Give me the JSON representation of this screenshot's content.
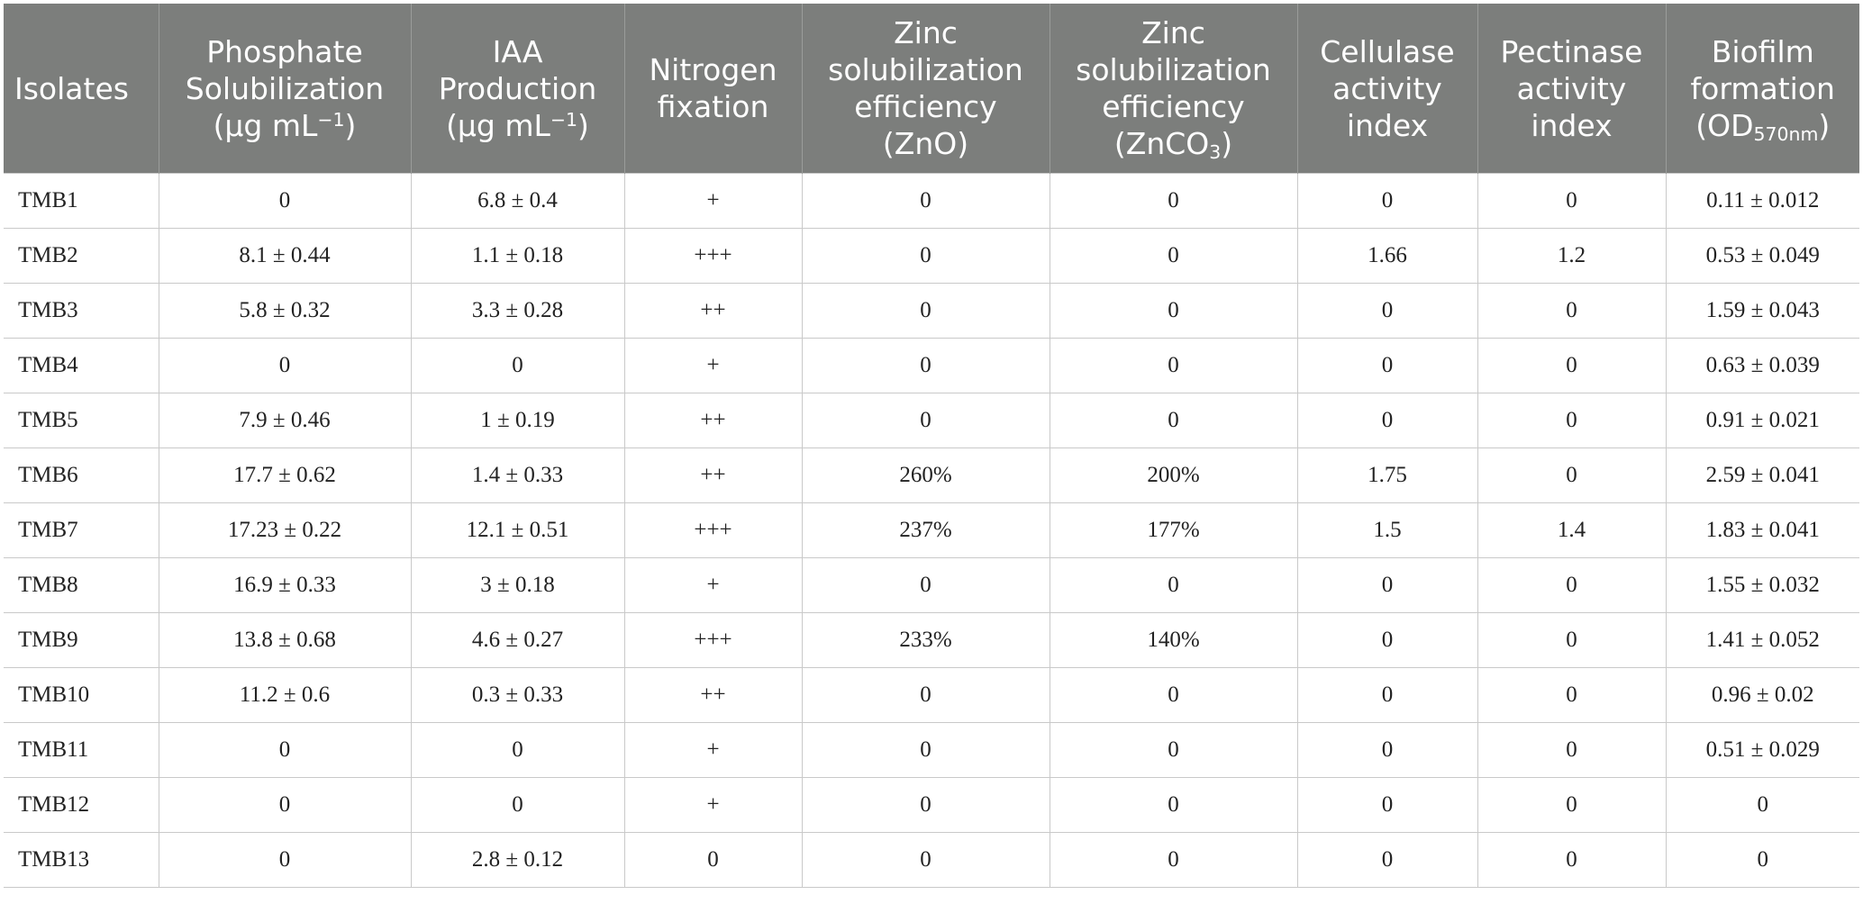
{
  "table": {
    "headers": [
      {
        "text": "Isolates"
      },
      {
        "text": "Phosphate Solubilization (μg mL",
        "sup": "−1",
        "after": ")"
      },
      {
        "text": "IAA Production (μg mL",
        "sup": "−1",
        "after": ")"
      },
      {
        "text": "Nitrogen fixation"
      },
      {
        "text": "Zinc solubilization efficiency (ZnO)"
      },
      {
        "text": "Zinc solubilization efficiency (ZnCO",
        "sub": "3",
        "after": ")"
      },
      {
        "text": "Cellulase activity index"
      },
      {
        "text": "Pectinase activity index"
      },
      {
        "text": "Biofilm formation (OD",
        "sub": "570nm",
        "after": ")"
      }
    ],
    "rows": [
      [
        "TMB1",
        "0",
        "6.8 ± 0.4",
        "+",
        "0",
        "0",
        "0",
        "0",
        "0.11 ± 0.012"
      ],
      [
        "TMB2",
        "8.1 ± 0.44",
        "1.1 ± 0.18",
        "+++",
        "0",
        "0",
        "1.66",
        "1.2",
        "0.53 ± 0.049"
      ],
      [
        "TMB3",
        "5.8 ± 0.32",
        "3.3 ± 0.28",
        "++",
        "0",
        "0",
        "0",
        "0",
        "1.59 ± 0.043"
      ],
      [
        "TMB4",
        "0",
        "0",
        "+",
        "0",
        "0",
        "0",
        "0",
        "0.63 ± 0.039"
      ],
      [
        "TMB5",
        "7.9 ± 0.46",
        "1 ± 0.19",
        "++",
        "0",
        "0",
        "0",
        "0",
        "0.91 ± 0.021"
      ],
      [
        "TMB6",
        "17.7 ± 0.62",
        "1.4 ± 0.33",
        "++",
        "260%",
        "200%",
        "1.75",
        "0",
        "2.59 ± 0.041"
      ],
      [
        "TMB7",
        "17.23 ± 0.22",
        "12.1 ± 0.51",
        "+++",
        "237%",
        "177%",
        "1.5",
        "1.4",
        "1.83 ± 0.041"
      ],
      [
        "TMB8",
        "16.9 ± 0.33",
        "3 ± 0.18",
        "+",
        "0",
        "0",
        "0",
        "0",
        "1.55 ± 0.032"
      ],
      [
        "TMB9",
        "13.8 ± 0.68",
        "4.6 ± 0.27",
        "+++",
        "233%",
        "140%",
        "0",
        "0",
        "1.41 ± 0.052"
      ],
      [
        "TMB10",
        "11.2 ± 0.6",
        "0.3 ± 0.33",
        "++",
        "0",
        "0",
        "0",
        "0",
        "0.96 ± 0.02"
      ],
      [
        "TMB11",
        "0",
        "0",
        "+",
        "0",
        "0",
        "0",
        "0",
        "0.51 ± 0.029"
      ],
      [
        "TMB12",
        "0",
        "0",
        "+",
        "0",
        "0",
        "0",
        "0",
        "0"
      ],
      [
        "TMB13",
        "0",
        "2.8 ± 0.12",
        "0",
        "0",
        "0",
        "0",
        "0",
        "0"
      ]
    ]
  },
  "colors": {
    "header_background": "#7c7e7c",
    "header_text": "#ffffff",
    "grid_line": "#c9c9c9",
    "body_text": "#222222"
  }
}
